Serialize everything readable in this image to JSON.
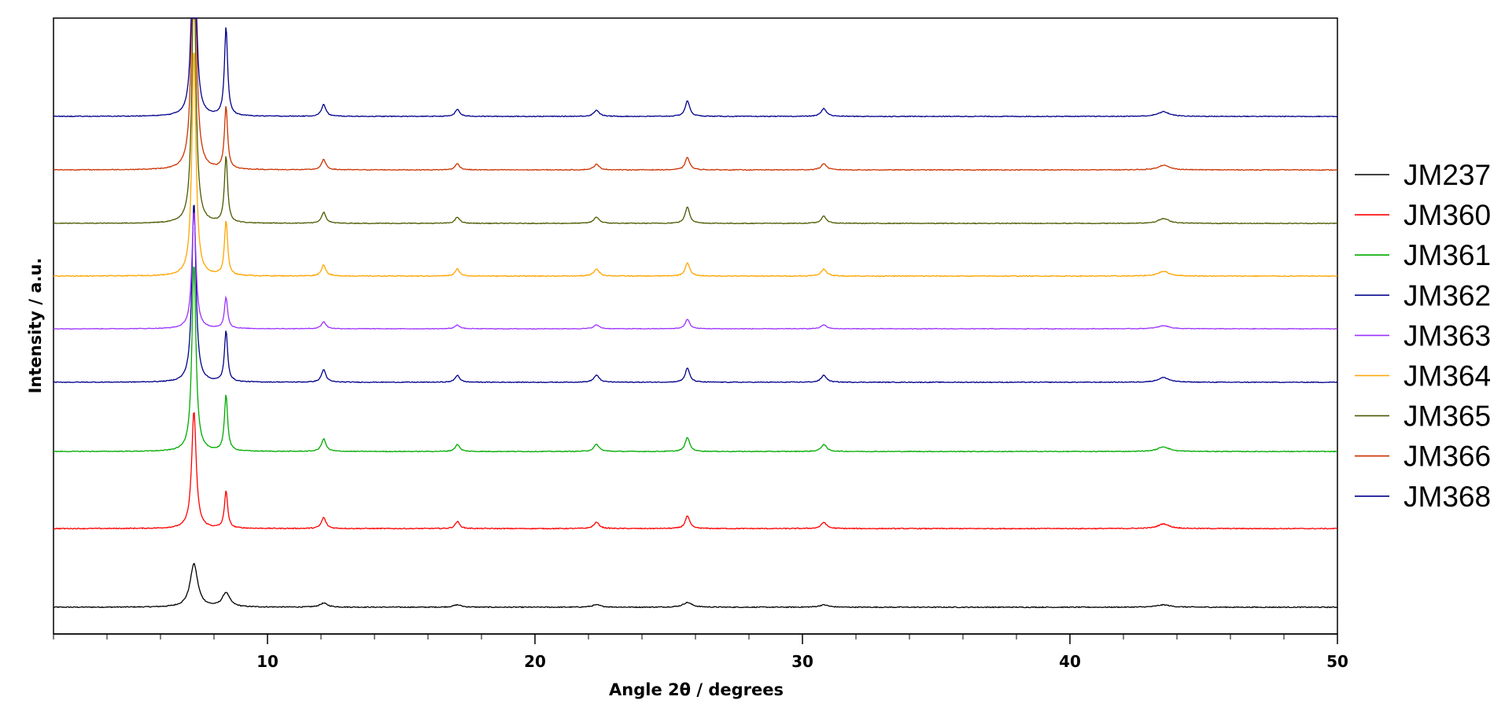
{
  "chart_data": {
    "type": "line",
    "title": "",
    "xlabel": "Angle 2θ / degrees",
    "ylabel": "Intensity / a.u.",
    "xlim": [
      2,
      50
    ],
    "x_ticks_major": [
      10,
      20,
      30,
      40,
      50
    ],
    "x_minor_step": 2,
    "y_ticks": "none",
    "legend_position": "right",
    "grid": false,
    "stacking": "vertically offset diffractograms, bottom to top in legend order",
    "series": [
      {
        "name": "JM237",
        "color": "#000000",
        "baseline": 0,
        "noise": 0.6,
        "peaks": [
          [
            7.25,
            55,
            0.17
          ],
          [
            8.45,
            18,
            0.17
          ],
          [
            12.1,
            5,
            0.18
          ],
          [
            17.1,
            3,
            0.18
          ],
          [
            22.3,
            3,
            0.2
          ],
          [
            25.7,
            6,
            0.2
          ],
          [
            30.8,
            3,
            0.2
          ],
          [
            43.5,
            3,
            0.3
          ]
        ]
      },
      {
        "name": "JM360",
        "color": "#ff0000",
        "baseline": 100,
        "noise": 0.6,
        "peaks": [
          [
            7.25,
            150,
            0.1
          ],
          [
            8.45,
            48,
            0.07
          ],
          [
            12.1,
            14,
            0.1
          ],
          [
            17.1,
            9,
            0.1
          ],
          [
            22.3,
            8,
            0.12
          ],
          [
            25.7,
            16,
            0.1
          ],
          [
            30.8,
            8,
            0.12
          ],
          [
            43.5,
            6,
            0.25
          ]
        ]
      },
      {
        "name": "JM361",
        "color": "#00aa00",
        "baseline": 198,
        "noise": 0.5,
        "peaks": [
          [
            7.25,
            240,
            0.09
          ],
          [
            8.45,
            72,
            0.07
          ],
          [
            12.1,
            16,
            0.1
          ],
          [
            17.1,
            9,
            0.1
          ],
          [
            22.3,
            9,
            0.12
          ],
          [
            25.7,
            18,
            0.1
          ],
          [
            30.8,
            9,
            0.12
          ],
          [
            43.5,
            6,
            0.25
          ]
        ]
      },
      {
        "name": "JM362",
        "color": "#00008b",
        "baseline": 286,
        "noise": 0.5,
        "peaks": [
          [
            7.25,
            230,
            0.09
          ],
          [
            8.45,
            65,
            0.07
          ],
          [
            12.1,
            16,
            0.1
          ],
          [
            17.1,
            9,
            0.1
          ],
          [
            22.3,
            9,
            0.12
          ],
          [
            25.7,
            18,
            0.1
          ],
          [
            30.8,
            9,
            0.12
          ],
          [
            43.5,
            6,
            0.25
          ]
        ]
      },
      {
        "name": "JM363",
        "color": "#9b30ff",
        "baseline": 354,
        "noise": 0.4,
        "peaks": [
          [
            7.25,
            150,
            0.09
          ],
          [
            8.45,
            40,
            0.07
          ],
          [
            12.1,
            9,
            0.1
          ],
          [
            17.1,
            5,
            0.1
          ],
          [
            22.3,
            5,
            0.12
          ],
          [
            25.7,
            12,
            0.1
          ],
          [
            30.8,
            5,
            0.12
          ],
          [
            43.5,
            4,
            0.25
          ]
        ]
      },
      {
        "name": "JM364",
        "color": "#ffa500",
        "baseline": 421,
        "noise": 0.6,
        "peaks": [
          [
            7.25,
            290,
            0.09
          ],
          [
            8.45,
            70,
            0.07
          ],
          [
            12.1,
            14,
            0.1
          ],
          [
            17.1,
            9,
            0.1
          ],
          [
            22.3,
            9,
            0.12
          ],
          [
            25.7,
            17,
            0.1
          ],
          [
            30.8,
            9,
            0.12
          ],
          [
            43.5,
            6,
            0.25
          ]
        ]
      },
      {
        "name": "JM365",
        "color": "#4b5a00",
        "baseline": 488,
        "noise": 0.5,
        "peaks": [
          [
            7.25,
            320,
            0.09
          ],
          [
            8.45,
            85,
            0.07
          ],
          [
            12.1,
            14,
            0.1
          ],
          [
            17.1,
            8,
            0.1
          ],
          [
            22.3,
            8,
            0.12
          ],
          [
            25.7,
            21,
            0.1
          ],
          [
            30.8,
            9,
            0.12
          ],
          [
            43.5,
            6,
            0.25
          ]
        ]
      },
      {
        "name": "JM366",
        "color": "#cc3300",
        "baseline": 556,
        "noise": 0.5,
        "peaks": [
          [
            7.25,
            380,
            0.09
          ],
          [
            8.45,
            80,
            0.07
          ],
          [
            12.1,
            13,
            0.1
          ],
          [
            17.1,
            8,
            0.1
          ],
          [
            22.3,
            7,
            0.12
          ],
          [
            25.7,
            16,
            0.1
          ],
          [
            30.8,
            8,
            0.12
          ],
          [
            43.5,
            6,
            0.25
          ]
        ]
      },
      {
        "name": "JM368",
        "color": "#00008b",
        "baseline": 624,
        "noise": 0.5,
        "peaks": [
          [
            7.25,
            355,
            0.08
          ],
          [
            8.45,
            113,
            0.07
          ],
          [
            12.1,
            15,
            0.1
          ],
          [
            17.1,
            9,
            0.1
          ],
          [
            22.3,
            8,
            0.12
          ],
          [
            25.7,
            20,
            0.1
          ],
          [
            30.8,
            10,
            0.12
          ],
          [
            43.5,
            6,
            0.25
          ]
        ]
      }
    ]
  }
}
